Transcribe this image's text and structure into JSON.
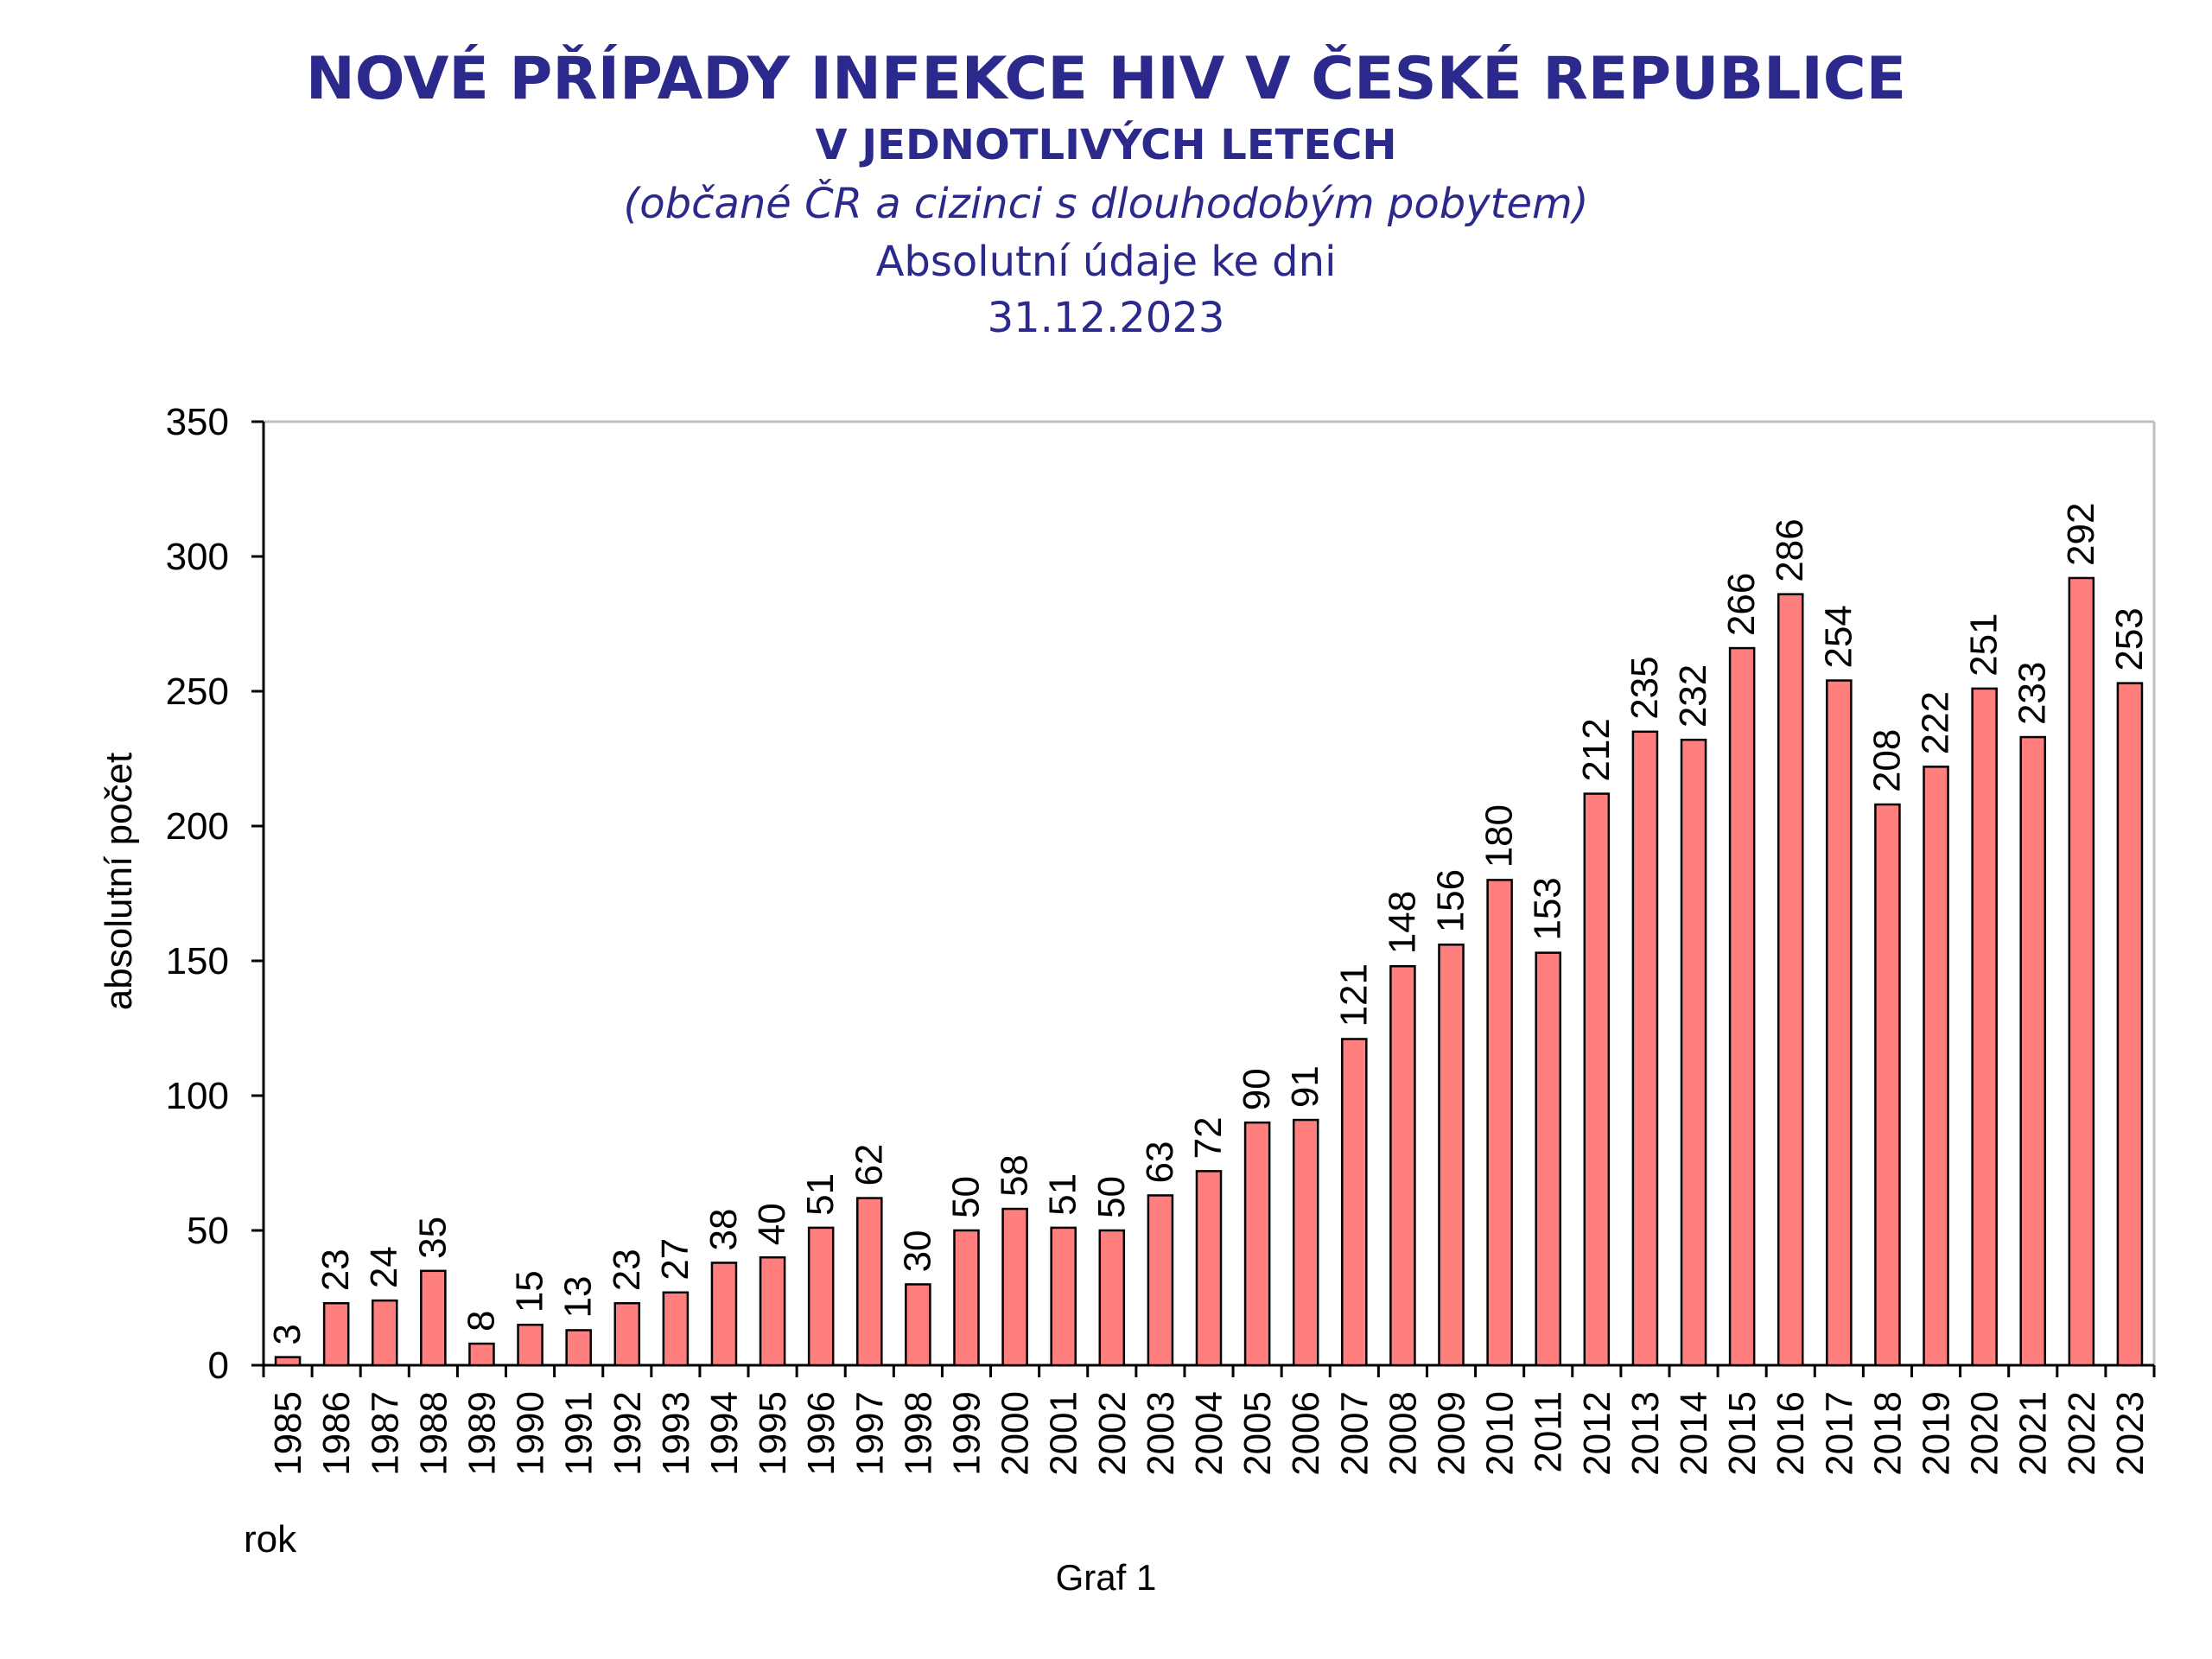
{
  "header": {
    "title": "NOVÉ PŘÍPADY INFEKCE HIV V ČESKÉ REPUBLICE",
    "subtitle": "V JEDNOTLIVÝCH LETECH",
    "note": "(občané ČR a cizinci s dlouhodobým pobytem)",
    "absolute_label": "Absolutní údaje ke dni",
    "date": "31.12.2023"
  },
  "footer": {
    "caption": "Graf 1"
  },
  "colors": {
    "title": "#2b2a8c",
    "bar_fill": "#ff7f7f",
    "bar_stroke": "#000000",
    "grid": "#c0c0c0"
  },
  "chart_data": {
    "type": "bar",
    "title": "NOVÉ PŘÍPADY INFEKCE HIV V ČESKÉ REPUBLICE",
    "xlabel": "rok",
    "ylabel": "absolutní počet",
    "ylim": [
      0,
      350
    ],
    "yticks": [
      0,
      50,
      100,
      150,
      200,
      250,
      300,
      350
    ],
    "grid": false,
    "categories": [
      "1985",
      "1986",
      "1987",
      "1988",
      "1989",
      "1990",
      "1991",
      "1992",
      "1993",
      "1994",
      "1995",
      "1996",
      "1997",
      "1998",
      "1999",
      "2000",
      "2001",
      "2002",
      "2003",
      "2004",
      "2005",
      "2006",
      "2007",
      "2008",
      "2009",
      "2010",
      "2011",
      "2012",
      "2013",
      "2014",
      "2015",
      "2016",
      "2017",
      "2018",
      "2019",
      "2020",
      "2021",
      "2022",
      "2023"
    ],
    "values": [
      3,
      23,
      24,
      35,
      8,
      15,
      13,
      23,
      27,
      38,
      40,
      51,
      62,
      30,
      50,
      58,
      51,
      50,
      63,
      72,
      90,
      91,
      121,
      148,
      156,
      180,
      153,
      212,
      235,
      232,
      266,
      286,
      254,
      208,
      222,
      251,
      233,
      292,
      253
    ]
  }
}
